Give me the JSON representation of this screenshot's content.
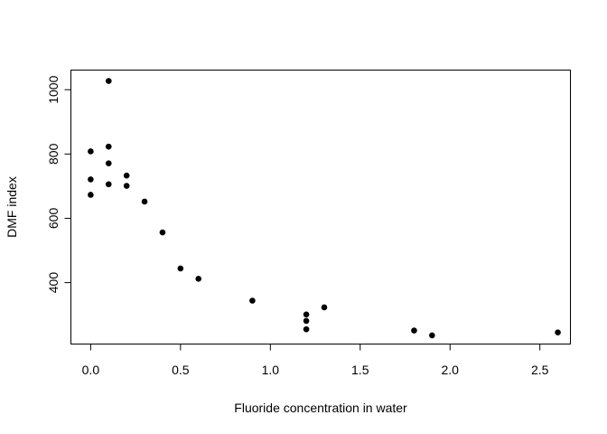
{
  "chart_data": {
    "type": "scatter",
    "title": "",
    "xlabel": "Fluoride concentration in water",
    "ylabel": "DMF index",
    "xlim": [
      -0.11,
      2.67
    ],
    "ylim": [
      209,
      1061
    ],
    "xticks": [
      0.0,
      0.5,
      1.0,
      1.5,
      2.0,
      2.5
    ],
    "xtick_labels": [
      "0.0",
      "0.5",
      "1.0",
      "1.5",
      "2.0",
      "2.5"
    ],
    "yticks": [
      400,
      600,
      800,
      1000
    ],
    "ytick_labels": [
      "400",
      "600",
      "800",
      "1000"
    ],
    "grid": false,
    "marker_color": "#000000",
    "points": [
      {
        "x": 0.0,
        "y": 673
      },
      {
        "x": 0.0,
        "y": 721
      },
      {
        "x": 0.0,
        "y": 808
      },
      {
        "x": 0.1,
        "y": 1027
      },
      {
        "x": 0.1,
        "y": 823
      },
      {
        "x": 0.1,
        "y": 771
      },
      {
        "x": 0.1,
        "y": 706
      },
      {
        "x": 0.2,
        "y": 733
      },
      {
        "x": 0.2,
        "y": 701
      },
      {
        "x": 0.3,
        "y": 652
      },
      {
        "x": 0.4,
        "y": 556
      },
      {
        "x": 0.5,
        "y": 444
      },
      {
        "x": 0.6,
        "y": 412
      },
      {
        "x": 0.9,
        "y": 344
      },
      {
        "x": 1.2,
        "y": 301
      },
      {
        "x": 1.2,
        "y": 281
      },
      {
        "x": 1.2,
        "y": 255
      },
      {
        "x": 1.3,
        "y": 323
      },
      {
        "x": 1.8,
        "y": 251
      },
      {
        "x": 1.9,
        "y": 236
      },
      {
        "x": 2.6,
        "y": 245
      }
    ]
  }
}
